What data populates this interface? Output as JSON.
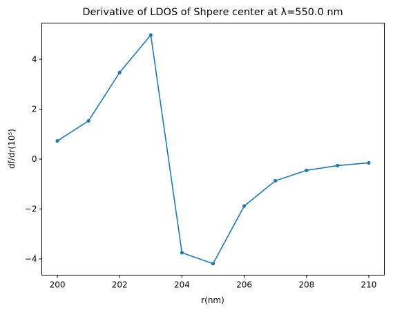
{
  "chart_data": {
    "type": "line",
    "title": "Derivative of LDOS of Shpere center at λ=550.0 nm",
    "xlabel": "r(nm)",
    "ylabel": "df/dr(10⁵)",
    "xlim": [
      199.5,
      210.5
    ],
    "ylim": [
      -4.65,
      5.45
    ],
    "x_ticks": [
      200,
      202,
      204,
      206,
      208,
      210
    ],
    "x_tick_labels": [
      "200",
      "202",
      "204",
      "206",
      "208",
      "210"
    ],
    "y_ticks": [
      4,
      2,
      0,
      -2,
      -4
    ],
    "y_tick_labels": [
      "4",
      "2",
      "0",
      "−2",
      "−4"
    ],
    "grid": false,
    "legend": "none",
    "series": [
      {
        "color": "#1f77b4",
        "marker": "circle",
        "x": [
          200,
          201,
          202,
          203,
          204,
          205,
          206,
          207,
          208,
          209,
          210
        ],
        "y": [
          0.73,
          1.53,
          3.47,
          4.97,
          -3.75,
          -4.19,
          -1.88,
          -0.87,
          -0.45,
          -0.26,
          -0.15
        ]
      }
    ]
  }
}
